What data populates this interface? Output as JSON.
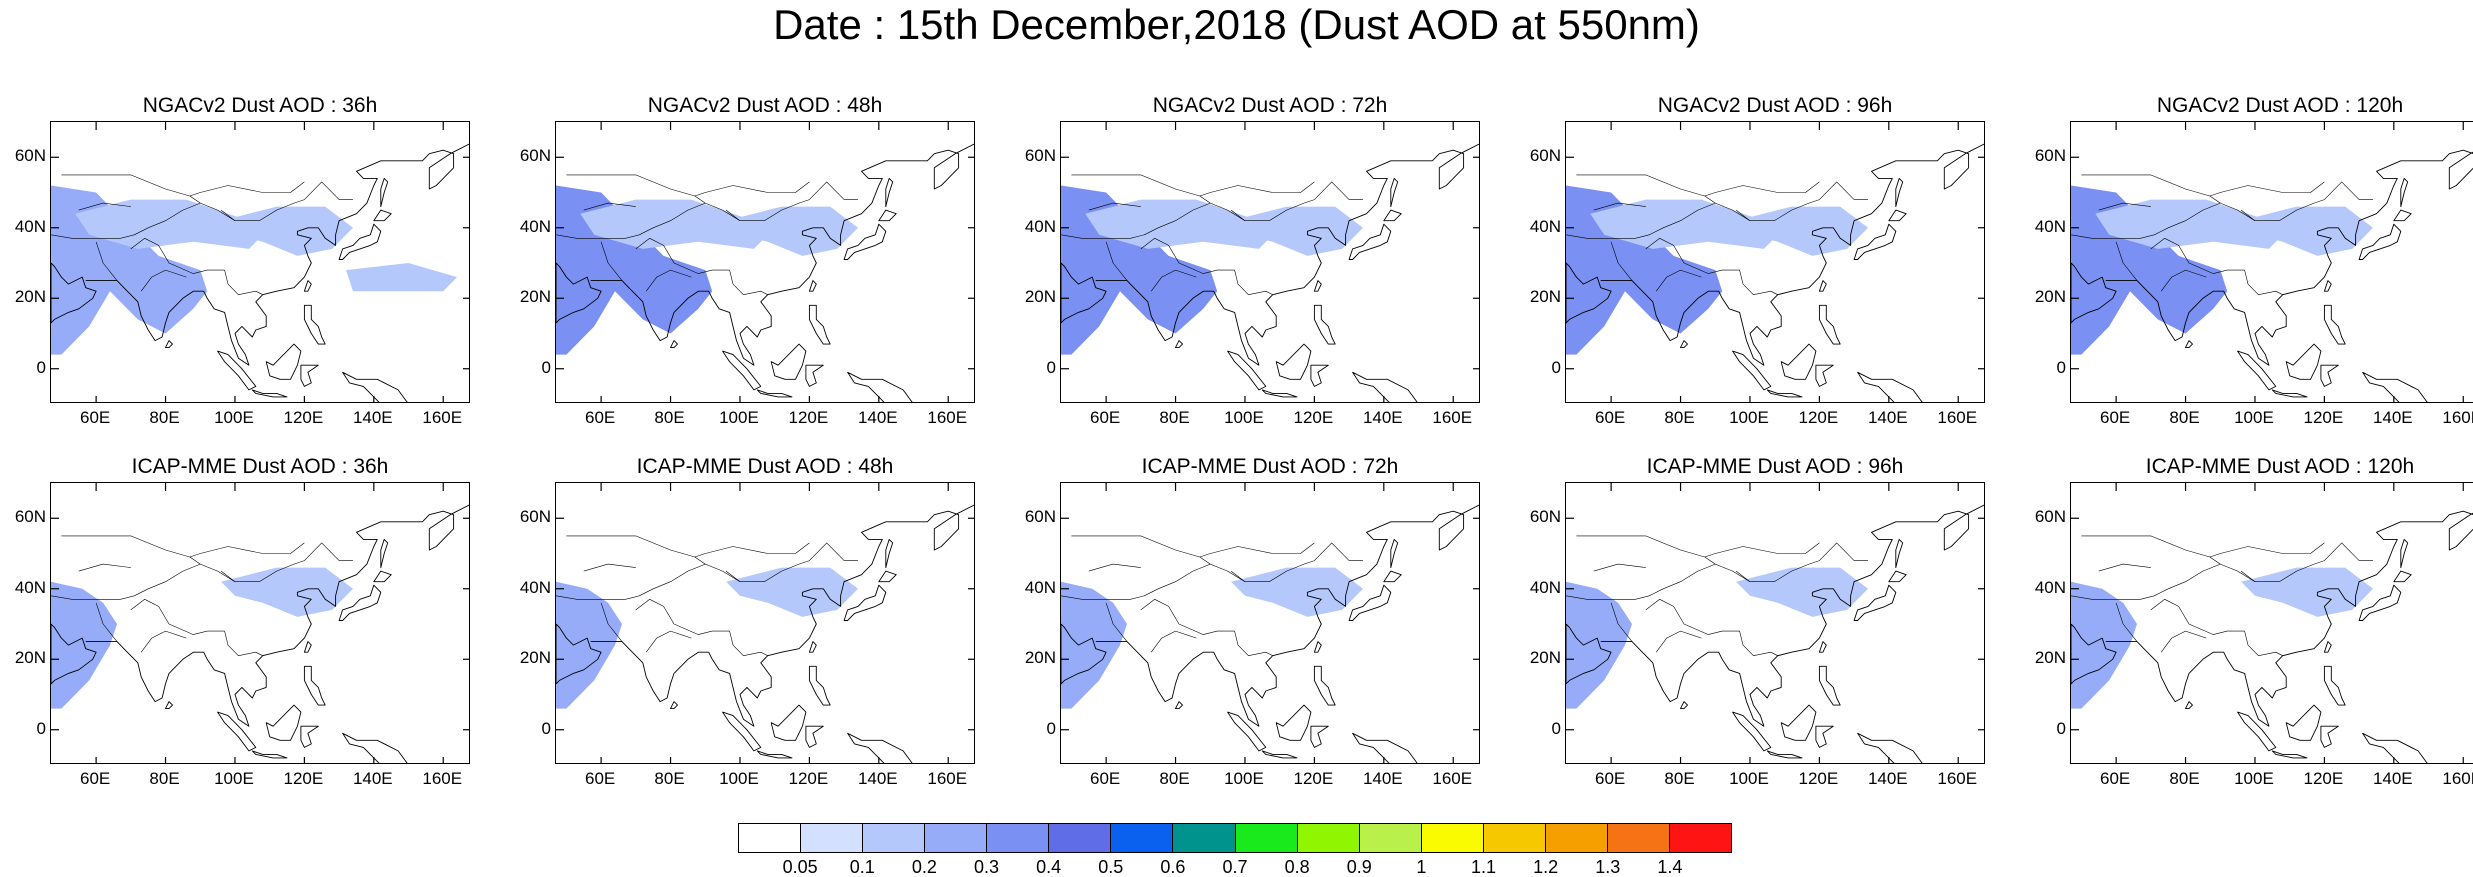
{
  "title": "Date : 15th December,2018 (Dust AOD at 550nm)",
  "axes": {
    "lon_range": [
      47,
      168
    ],
    "lat_range": [
      -10,
      70
    ],
    "x_ticks": [
      "60E",
      "80E",
      "100E",
      "120E",
      "140E",
      "160E"
    ],
    "x_tick_values": [
      60,
      80,
      100,
      120,
      140,
      160
    ],
    "y_ticks": [
      "60N",
      "40N",
      "20N",
      "0"
    ],
    "y_tick_values": [
      60,
      40,
      20,
      0
    ]
  },
  "panels": [
    {
      "title": "NGACv2 Dust AOD : 36h",
      "model": "NGACv2",
      "lead": "36h",
      "regions": [
        {
          "name": "arabia-india",
          "level": 0.2
        },
        {
          "name": "central-asia",
          "level": 0.1
        },
        {
          "name": "north-china",
          "level": 0.1
        },
        {
          "name": "west-pacific",
          "level": 0.1
        }
      ]
    },
    {
      "title": "NGACv2 Dust AOD : 48h",
      "model": "NGACv2",
      "lead": "48h",
      "regions": [
        {
          "name": "arabia-india",
          "level": 0.3
        },
        {
          "name": "central-asia",
          "level": 0.1
        },
        {
          "name": "north-china",
          "level": 0.1
        }
      ]
    },
    {
      "title": "NGACv2 Dust AOD : 72h",
      "model": "NGACv2",
      "lead": "72h",
      "regions": [
        {
          "name": "arabia-india",
          "level": 0.3
        },
        {
          "name": "central-asia",
          "level": 0.1
        },
        {
          "name": "north-china",
          "level": 0.1
        }
      ]
    },
    {
      "title": "NGACv2 Dust AOD : 96h",
      "model": "NGACv2",
      "lead": "96h",
      "regions": [
        {
          "name": "arabia-india",
          "level": 0.3
        },
        {
          "name": "central-asia",
          "level": 0.1
        },
        {
          "name": "north-china",
          "level": 0.1
        }
      ]
    },
    {
      "title": "NGACv2 Dust AOD : 120h",
      "model": "NGACv2",
      "lead": "120h",
      "regions": [
        {
          "name": "arabia-india",
          "level": 0.3
        },
        {
          "name": "central-asia",
          "level": 0.1
        },
        {
          "name": "north-china",
          "level": 0.1
        }
      ]
    },
    {
      "title": "ICAP-MME Dust AOD : 36h",
      "model": "ICAP-MME",
      "lead": "36h",
      "regions": [
        {
          "name": "arabia",
          "level": 0.2
        },
        {
          "name": "north-china",
          "level": 0.1
        }
      ]
    },
    {
      "title": "ICAP-MME Dust AOD : 48h",
      "model": "ICAP-MME",
      "lead": "48h",
      "regions": [
        {
          "name": "arabia",
          "level": 0.2
        },
        {
          "name": "north-china",
          "level": 0.1
        }
      ]
    },
    {
      "title": "ICAP-MME Dust AOD : 72h",
      "model": "ICAP-MME",
      "lead": "72h",
      "regions": [
        {
          "name": "arabia",
          "level": 0.2
        },
        {
          "name": "north-china",
          "level": 0.1
        }
      ]
    },
    {
      "title": "ICAP-MME Dust AOD : 96h",
      "model": "ICAP-MME",
      "lead": "96h",
      "regions": [
        {
          "name": "arabia",
          "level": 0.2
        },
        {
          "name": "north-china",
          "level": 0.1
        }
      ]
    },
    {
      "title": "ICAP-MME Dust AOD : 120h",
      "model": "ICAP-MME",
      "lead": "120h",
      "regions": [
        {
          "name": "arabia",
          "level": 0.2
        },
        {
          "name": "north-china",
          "level": 0.1
        }
      ]
    }
  ],
  "colorbar": {
    "labels": [
      "0.05",
      "0.1",
      "0.2",
      "0.3",
      "0.4",
      "0.5",
      "0.6",
      "0.7",
      "0.8",
      "0.9",
      "1",
      "1.1",
      "1.2",
      "1.3",
      "1.4"
    ],
    "colors": [
      "#ffffff",
      "#d4e0ff",
      "#b4c8fc",
      "#96acf8",
      "#7a90f2",
      "#5f6de6",
      "#0a61f0",
      "#00938e",
      "#19ea1c",
      "#90f500",
      "#baf04a",
      "#fafa00",
      "#f5c800",
      "#f5a000",
      "#f57314",
      "#ff1414"
    ]
  }
}
